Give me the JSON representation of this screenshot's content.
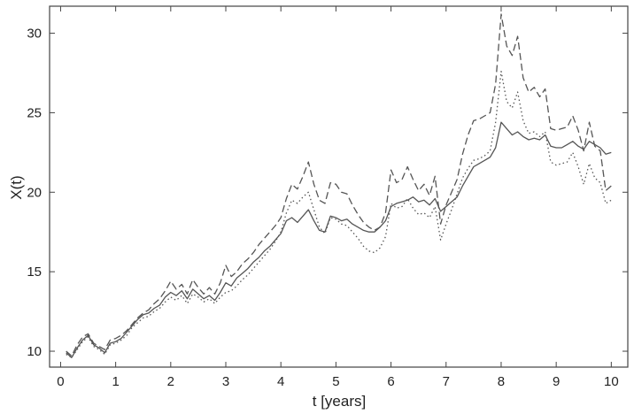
{
  "chart_data": {
    "type": "line",
    "xlabel": "t  [years]",
    "ylabel": "X(t)",
    "xlim": [
      -0.2,
      10.3
    ],
    "ylim": [
      9.0,
      31.7
    ],
    "xticks": [
      0,
      1,
      2,
      3,
      4,
      5,
      6,
      7,
      8,
      9,
      10
    ],
    "yticks": [
      10,
      15,
      20,
      25,
      30
    ],
    "grid": false,
    "legend": "none",
    "colors": {
      "line": "#555555",
      "axis": "#444444"
    },
    "x": [
      0.1,
      0.2,
      0.3,
      0.4,
      0.5,
      0.6,
      0.7,
      0.8,
      0.9,
      1.0,
      1.1,
      1.2,
      1.3,
      1.4,
      1.5,
      1.6,
      1.7,
      1.8,
      1.9,
      2.0,
      2.1,
      2.2,
      2.3,
      2.4,
      2.5,
      2.6,
      2.7,
      2.8,
      2.9,
      3.0,
      3.1,
      3.2,
      3.3,
      3.4,
      3.5,
      3.6,
      3.7,
      3.8,
      3.9,
      4.0,
      4.1,
      4.2,
      4.3,
      4.4,
      4.5,
      4.6,
      4.7,
      4.8,
      4.9,
      5.0,
      5.1,
      5.2,
      5.3,
      5.4,
      5.5,
      5.6,
      5.7,
      5.8,
      5.9,
      6.0,
      6.1,
      6.2,
      6.3,
      6.4,
      6.5,
      6.6,
      6.7,
      6.8,
      6.9,
      7.0,
      7.1,
      7.2,
      7.3,
      7.4,
      7.5,
      7.6,
      7.7,
      7.8,
      7.9,
      8.0,
      8.1,
      8.2,
      8.3,
      8.4,
      8.5,
      8.6,
      8.7,
      8.8,
      8.9,
      9.0,
      9.1,
      9.2,
      9.3,
      9.4,
      9.5,
      9.6,
      9.7,
      9.8,
      9.9,
      10.0
    ],
    "series": [
      {
        "style": "solid",
        "values": [
          9.9,
          9.6,
          10.2,
          10.7,
          11.0,
          10.4,
          10.2,
          9.9,
          10.5,
          10.6,
          10.8,
          11.2,
          11.6,
          12.0,
          12.3,
          12.4,
          12.7,
          12.9,
          13.4,
          13.7,
          13.5,
          13.8,
          13.3,
          13.9,
          13.6,
          13.3,
          13.5,
          13.2,
          13.7,
          14.3,
          14.1,
          14.6,
          14.9,
          15.2,
          15.6,
          15.9,
          16.3,
          16.6,
          17.0,
          17.4,
          18.2,
          18.4,
          18.1,
          18.5,
          18.9,
          18.2,
          17.6,
          17.5,
          18.5,
          18.4,
          18.2,
          18.3,
          18.0,
          17.8,
          17.6,
          17.5,
          17.5,
          17.8,
          18.2,
          19.1,
          19.3,
          19.4,
          19.5,
          19.7,
          19.4,
          19.5,
          19.2,
          19.6,
          18.8,
          19.1,
          19.4,
          19.7,
          20.4,
          21.0,
          21.6,
          21.8,
          22.0,
          22.2,
          22.8,
          24.4,
          24.0,
          23.6,
          23.8,
          23.5,
          23.3,
          23.4,
          23.3,
          23.6,
          22.9,
          22.8,
          22.8,
          23.0,
          23.2,
          22.9,
          22.7,
          23.2,
          23.0,
          22.8,
          22.4,
          22.5
        ]
      },
      {
        "style": "dashed",
        "values": [
          10.0,
          9.7,
          10.4,
          10.9,
          11.1,
          10.5,
          10.3,
          10.1,
          10.7,
          10.8,
          11.0,
          11.3,
          11.7,
          12.1,
          12.4,
          12.6,
          13.0,
          13.3,
          13.8,
          14.4,
          13.9,
          14.2,
          13.6,
          14.5,
          14.0,
          13.6,
          14.0,
          13.6,
          14.3,
          15.4,
          14.7,
          15.0,
          15.5,
          15.8,
          16.2,
          16.7,
          17.1,
          17.5,
          17.9,
          18.4,
          19.6,
          20.5,
          20.2,
          21.0,
          21.9,
          20.5,
          19.5,
          19.3,
          20.6,
          20.5,
          20.0,
          19.9,
          19.2,
          18.6,
          18.1,
          17.8,
          17.6,
          17.8,
          18.7,
          21.4,
          20.6,
          20.8,
          21.6,
          20.8,
          20.1,
          20.5,
          19.8,
          21.0,
          18.0,
          19.2,
          20.0,
          20.8,
          22.4,
          23.6,
          24.5,
          24.6,
          24.8,
          25.0,
          26.8,
          31.2,
          29.2,
          28.6,
          29.8,
          27.2,
          26.3,
          26.6,
          26.0,
          26.5,
          24.0,
          23.9,
          24.0,
          24.1,
          24.8,
          23.9,
          22.6,
          24.4,
          22.9,
          22.6,
          20.1,
          20.4
        ]
      },
      {
        "style": "dotted",
        "values": [
          9.8,
          9.6,
          10.1,
          10.6,
          10.9,
          10.3,
          10.1,
          9.8,
          10.4,
          10.5,
          10.7,
          11.0,
          11.5,
          11.8,
          12.1,
          12.2,
          12.5,
          12.7,
          13.1,
          13.4,
          13.2,
          13.5,
          13.0,
          13.6,
          13.4,
          13.1,
          13.3,
          13.0,
          13.4,
          13.7,
          13.8,
          14.1,
          14.5,
          14.8,
          15.2,
          15.6,
          16.0,
          16.4,
          16.9,
          17.5,
          18.7,
          19.5,
          19.3,
          19.7,
          20.0,
          18.9,
          17.8,
          17.4,
          18.4,
          18.3,
          18.0,
          17.9,
          17.5,
          17.1,
          16.6,
          16.3,
          16.2,
          16.5,
          17.2,
          19.3,
          19.0,
          19.1,
          19.6,
          19.0,
          18.6,
          18.7,
          18.4,
          19.1,
          17.0,
          18.0,
          18.9,
          19.9,
          20.9,
          21.5,
          22.0,
          22.1,
          22.3,
          22.6,
          24.4,
          27.6,
          25.7,
          25.3,
          26.3,
          24.5,
          23.7,
          23.8,
          23.5,
          23.8,
          21.9,
          21.7,
          21.8,
          21.9,
          22.5,
          21.6,
          20.5,
          21.8,
          20.9,
          20.6,
          19.3,
          19.5
        ]
      }
    ]
  }
}
